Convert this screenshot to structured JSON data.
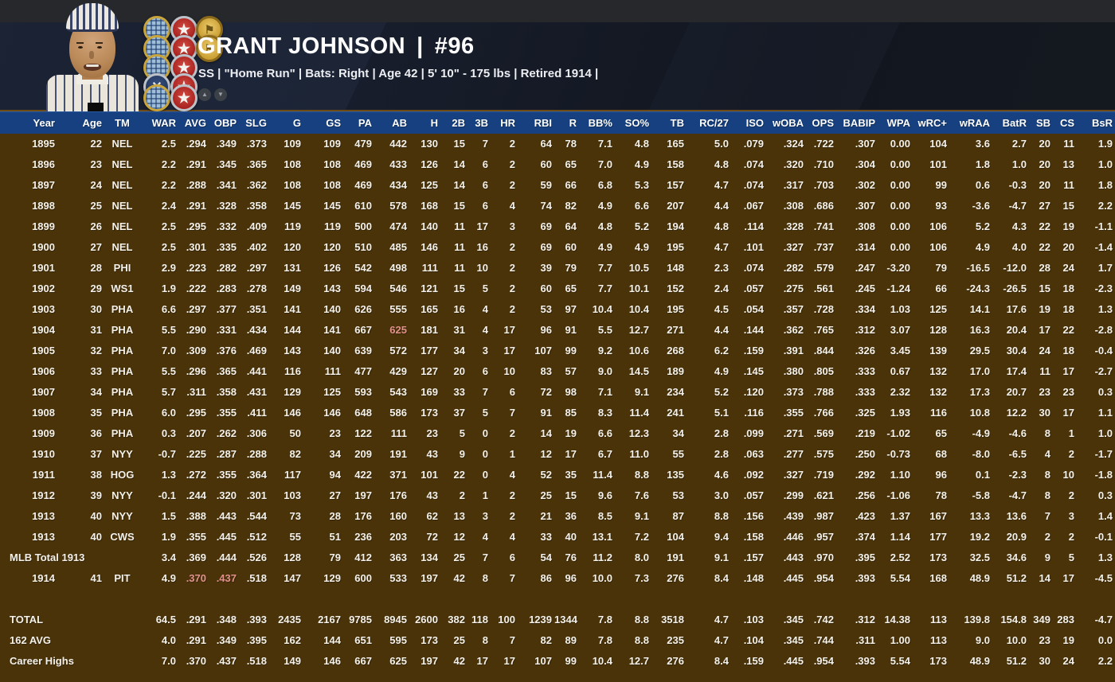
{
  "header": {
    "name": "GRANT JOHNSON",
    "name_number_separator": "|",
    "number": "#96",
    "subtitle": "SS | \"Home Run\" | Bats: Right  |  Age 42  |  5' 10\" - 175 lbs  |  Retired 1914  |",
    "scroll_up_glyph": "▲",
    "scroll_down_glyph": "▼",
    "badges": [
      {
        "row": 0,
        "col": 0,
        "type": "plaid",
        "icon": "plaid-medal-icon",
        "glyph": ""
      },
      {
        "row": 0,
        "col": 1,
        "type": "star",
        "icon": "star-medal-icon",
        "glyph": "★"
      },
      {
        "row": 0,
        "col": 2,
        "type": "gold",
        "icon": "gold-medal-icon",
        "glyph": "⚑"
      },
      {
        "row": 1,
        "col": 0,
        "type": "plaid",
        "icon": "plaid-medal-icon",
        "glyph": ""
      },
      {
        "row": 1,
        "col": 1,
        "type": "star",
        "icon": "star-medal-icon",
        "glyph": "★"
      },
      {
        "row": 1,
        "col": 2,
        "type": "gold",
        "icon": "gold-medal-icon",
        "glyph": "⚑"
      },
      {
        "row": 2,
        "col": 0,
        "type": "plaid",
        "icon": "plaid-medal-icon",
        "glyph": ""
      },
      {
        "row": 2,
        "col": 1,
        "type": "star",
        "icon": "star-medal-icon",
        "glyph": "★"
      },
      {
        "row": 3,
        "col": 0,
        "type": "bats",
        "icon": "crossed-bats-medal-icon",
        "glyph": "✕"
      },
      {
        "row": 3,
        "col": 1,
        "type": "star",
        "icon": "star-medal-icon",
        "glyph": "★"
      },
      {
        "row": 4,
        "col": 0,
        "type": "plaid",
        "icon": "plaid-medal-icon",
        "glyph": ""
      },
      {
        "row": 4,
        "col": 1,
        "type": "star",
        "icon": "star-medal-icon",
        "glyph": "★"
      }
    ]
  },
  "colors": {
    "table_background": "#4a3309",
    "header_row": "#16407f",
    "banner": "#14181f",
    "top_strip": "#26282c",
    "accent_line": "#6e4b15",
    "text": "#f3f1ea",
    "league_leader_highlight": "#e2908c"
  },
  "table": {
    "columns": [
      "Year",
      "Age",
      "TM",
      "WAR",
      "AVG",
      "OBP",
      "SLG",
      "G",
      "GS",
      "PA",
      "AB",
      "H",
      "2B",
      "3B",
      "HR",
      "RBI",
      "R",
      "BB%",
      "SO%",
      "TB",
      "RC/27",
      "ISO",
      "wOBA",
      "OPS",
      "BABIP",
      "WPA",
      "wRC+",
      "wRAA",
      "BatR",
      "SB",
      "CS",
      "BsR"
    ],
    "rows": [
      {
        "type": "year",
        "values": [
          "1895",
          "22",
          "NEL",
          "2.5",
          ".294",
          ".349",
          ".373",
          "109",
          "109",
          "479",
          "442",
          "130",
          "15",
          "7",
          "2",
          "64",
          "78",
          "7.1",
          "4.8",
          "165",
          "5.0",
          ".079",
          ".324",
          ".722",
          ".307",
          "0.00",
          "104",
          "3.6",
          "2.7",
          "20",
          "11",
          "1.9"
        ]
      },
      {
        "type": "year",
        "values": [
          "1896",
          "23",
          "NEL",
          "2.2",
          ".291",
          ".345",
          ".365",
          "108",
          "108",
          "469",
          "433",
          "126",
          "14",
          "6",
          "2",
          "60",
          "65",
          "7.0",
          "4.9",
          "158",
          "4.8",
          ".074",
          ".320",
          ".710",
          ".304",
          "0.00",
          "101",
          "1.8",
          "1.0",
          "20",
          "13",
          "1.0"
        ]
      },
      {
        "type": "year",
        "values": [
          "1897",
          "24",
          "NEL",
          "2.2",
          ".288",
          ".341",
          ".362",
          "108",
          "108",
          "469",
          "434",
          "125",
          "14",
          "6",
          "2",
          "59",
          "66",
          "6.8",
          "5.3",
          "157",
          "4.7",
          ".074",
          ".317",
          ".703",
          ".302",
          "0.00",
          "99",
          "0.6",
          "-0.3",
          "20",
          "11",
          "1.8"
        ]
      },
      {
        "type": "year",
        "values": [
          "1898",
          "25",
          "NEL",
          "2.4",
          ".291",
          ".328",
          ".358",
          "145",
          "145",
          "610",
          "578",
          "168",
          "15",
          "6",
          "4",
          "74",
          "82",
          "4.9",
          "6.6",
          "207",
          "4.4",
          ".067",
          ".308",
          ".686",
          ".307",
          "0.00",
          "93",
          "-3.6",
          "-4.7",
          "27",
          "15",
          "2.2"
        ]
      },
      {
        "type": "year",
        "values": [
          "1899",
          "26",
          "NEL",
          "2.5",
          ".295",
          ".332",
          ".409",
          "119",
          "119",
          "500",
          "474",
          "140",
          "11",
          "17",
          "3",
          "69",
          "64",
          "4.8",
          "5.2",
          "194",
          "4.8",
          ".114",
          ".328",
          ".741",
          ".308",
          "0.00",
          "106",
          "5.2",
          "4.3",
          "22",
          "19",
          "-1.1"
        ]
      },
      {
        "type": "year",
        "values": [
          "1900",
          "27",
          "NEL",
          "2.5",
          ".301",
          ".335",
          ".402",
          "120",
          "120",
          "510",
          "485",
          "146",
          "11",
          "16",
          "2",
          "69",
          "60",
          "4.9",
          "4.9",
          "195",
          "4.7",
          ".101",
          ".327",
          ".737",
          ".314",
          "0.00",
          "106",
          "4.9",
          "4.0",
          "22",
          "20",
          "-1.4"
        ]
      },
      {
        "type": "year",
        "values": [
          "1901",
          "28",
          "PHI",
          "2.9",
          ".223",
          ".282",
          ".297",
          "131",
          "126",
          "542",
          "498",
          "111",
          "11",
          "10",
          "2",
          "39",
          "79",
          "7.7",
          "10.5",
          "148",
          "2.3",
          ".074",
          ".282",
          ".579",
          ".247",
          "-3.20",
          "79",
          "-16.5",
          "-12.0",
          "28",
          "24",
          "1.7"
        ]
      },
      {
        "type": "year",
        "values": [
          "1902",
          "29",
          "WS1",
          "1.9",
          ".222",
          ".283",
          ".278",
          "149",
          "143",
          "594",
          "546",
          "121",
          "15",
          "5",
          "2",
          "60",
          "65",
          "7.7",
          "10.1",
          "152",
          "2.4",
          ".057",
          ".275",
          ".561",
          ".245",
          "-1.24",
          "66",
          "-24.3",
          "-26.5",
          "15",
          "18",
          "-2.3"
        ]
      },
      {
        "type": "year",
        "values": [
          "1903",
          "30",
          "PHA",
          "6.6",
          ".297",
          ".377",
          ".351",
          "141",
          "140",
          "626",
          "555",
          "165",
          "16",
          "4",
          "2",
          "53",
          "97",
          "10.4",
          "10.4",
          "195",
          "4.5",
          ".054",
          ".357",
          ".728",
          ".334",
          "1.03",
          "125",
          "14.1",
          "17.6",
          "19",
          "18",
          "1.3"
        ]
      },
      {
        "type": "year",
        "hl": [
          10
        ],
        "values": [
          "1904",
          "31",
          "PHA",
          "5.5",
          ".290",
          ".331",
          ".434",
          "144",
          "141",
          "667",
          "625",
          "181",
          "31",
          "4",
          "17",
          "96",
          "91",
          "5.5",
          "12.7",
          "271",
          "4.4",
          ".144",
          ".362",
          ".765",
          ".312",
          "3.07",
          "128",
          "16.3",
          "20.4",
          "17",
          "22",
          "-2.8"
        ]
      },
      {
        "type": "year",
        "values": [
          "1905",
          "32",
          "PHA",
          "7.0",
          ".309",
          ".376",
          ".469",
          "143",
          "140",
          "639",
          "572",
          "177",
          "34",
          "3",
          "17",
          "107",
          "99",
          "9.2",
          "10.6",
          "268",
          "6.2",
          ".159",
          ".391",
          ".844",
          ".326",
          "3.45",
          "139",
          "29.5",
          "30.4",
          "24",
          "18",
          "-0.4"
        ]
      },
      {
        "type": "year",
        "values": [
          "1906",
          "33",
          "PHA",
          "5.5",
          ".296",
          ".365",
          ".441",
          "116",
          "111",
          "477",
          "429",
          "127",
          "20",
          "6",
          "10",
          "83",
          "57",
          "9.0",
          "14.5",
          "189",
          "4.9",
          ".145",
          ".380",
          ".805",
          ".333",
          "0.67",
          "132",
          "17.0",
          "17.4",
          "11",
          "17",
          "-2.7"
        ]
      },
      {
        "type": "year",
        "values": [
          "1907",
          "34",
          "PHA",
          "5.7",
          ".311",
          ".358",
          ".431",
          "129",
          "125",
          "593",
          "543",
          "169",
          "33",
          "7",
          "6",
          "72",
          "98",
          "7.1",
          "9.1",
          "234",
          "5.2",
          ".120",
          ".373",
          ".788",
          ".333",
          "2.32",
          "132",
          "17.3",
          "20.7",
          "23",
          "23",
          "0.3"
        ]
      },
      {
        "type": "year",
        "values": [
          "1908",
          "35",
          "PHA",
          "6.0",
          ".295",
          ".355",
          ".411",
          "146",
          "146",
          "648",
          "586",
          "173",
          "37",
          "5",
          "7",
          "91",
          "85",
          "8.3",
          "11.4",
          "241",
          "5.1",
          ".116",
          ".355",
          ".766",
          ".325",
          "1.93",
          "116",
          "10.8",
          "12.2",
          "30",
          "17",
          "1.1"
        ]
      },
      {
        "type": "year",
        "values": [
          "1909",
          "36",
          "PHA",
          "0.3",
          ".207",
          ".262",
          ".306",
          "50",
          "23",
          "122",
          "111",
          "23",
          "5",
          "0",
          "2",
          "14",
          "19",
          "6.6",
          "12.3",
          "34",
          "2.8",
          ".099",
          ".271",
          ".569",
          ".219",
          "-1.02",
          "65",
          "-4.9",
          "-4.6",
          "8",
          "1",
          "1.0"
        ]
      },
      {
        "type": "year",
        "values": [
          "1910",
          "37",
          "NYY",
          "-0.7",
          ".225",
          ".287",
          ".288",
          "82",
          "34",
          "209",
          "191",
          "43",
          "9",
          "0",
          "1",
          "12",
          "17",
          "6.7",
          "11.0",
          "55",
          "2.8",
          ".063",
          ".277",
          ".575",
          ".250",
          "-0.73",
          "68",
          "-8.0",
          "-6.5",
          "4",
          "2",
          "-1.7"
        ]
      },
      {
        "type": "year",
        "values": [
          "1911",
          "38",
          "HOG",
          "1.3",
          ".272",
          ".355",
          ".364",
          "117",
          "94",
          "422",
          "371",
          "101",
          "22",
          "0",
          "4",
          "52",
          "35",
          "11.4",
          "8.8",
          "135",
          "4.6",
          ".092",
          ".327",
          ".719",
          ".292",
          "1.10",
          "96",
          "0.1",
          "-2.3",
          "8",
          "10",
          "-1.8"
        ]
      },
      {
        "type": "year",
        "values": [
          "1912",
          "39",
          "NYY",
          "-0.1",
          ".244",
          ".320",
          ".301",
          "103",
          "27",
          "197",
          "176",
          "43",
          "2",
          "1",
          "2",
          "25",
          "15",
          "9.6",
          "7.6",
          "53",
          "3.0",
          ".057",
          ".299",
          ".621",
          ".256",
          "-1.06",
          "78",
          "-5.8",
          "-4.7",
          "8",
          "2",
          "0.3"
        ]
      },
      {
        "type": "year",
        "values": [
          "1913",
          "40",
          "NYY",
          "1.5",
          ".388",
          ".443",
          ".544",
          "73",
          "28",
          "176",
          "160",
          "62",
          "13",
          "3",
          "2",
          "21",
          "36",
          "8.5",
          "9.1",
          "87",
          "8.8",
          ".156",
          ".439",
          ".987",
          ".423",
          "1.37",
          "167",
          "13.3",
          "13.6",
          "7",
          "3",
          "1.4"
        ]
      },
      {
        "type": "year",
        "values": [
          "1913",
          "40",
          "CWS",
          "1.9",
          ".355",
          ".445",
          ".512",
          "55",
          "51",
          "236",
          "203",
          "72",
          "12",
          "4",
          "4",
          "33",
          "40",
          "13.1",
          "7.2",
          "104",
          "9.4",
          ".158",
          ".446",
          ".957",
          ".374",
          "1.14",
          "177",
          "19.2",
          "20.9",
          "2",
          "2",
          "-0.1"
        ]
      },
      {
        "type": "summary",
        "values": [
          "MLB Total 1913",
          "",
          "",
          "3.4",
          ".369",
          ".444",
          ".526",
          "128",
          "79",
          "412",
          "363",
          "134",
          "25",
          "7",
          "6",
          "54",
          "76",
          "11.2",
          "8.0",
          "191",
          "9.1",
          ".157",
          ".443",
          ".970",
          ".395",
          "2.52",
          "173",
          "32.5",
          "34.6",
          "9",
          "5",
          "1.3"
        ]
      },
      {
        "type": "year",
        "hl": [
          4,
          5
        ],
        "values": [
          "1914",
          "41",
          "PIT",
          "4.9",
          ".370",
          ".437",
          ".518",
          "147",
          "129",
          "600",
          "533",
          "197",
          "42",
          "8",
          "7",
          "86",
          "96",
          "10.0",
          "7.3",
          "276",
          "8.4",
          ".148",
          ".445",
          ".954",
          ".393",
          "5.54",
          "168",
          "48.9",
          "51.2",
          "14",
          "17",
          "-4.5"
        ]
      },
      {
        "type": "spacer",
        "values": []
      },
      {
        "type": "summary",
        "values": [
          "TOTAL",
          "",
          "",
          "64.5",
          ".291",
          ".348",
          ".393",
          "2435",
          "2167",
          "9785",
          "8945",
          "2600",
          "382",
          "118",
          "100",
          "1239",
          "1344",
          "7.8",
          "8.8",
          "3518",
          "4.7",
          ".103",
          ".345",
          ".742",
          ".312",
          "14.38",
          "113",
          "139.8",
          "154.8",
          "349",
          "283",
          "-4.7"
        ]
      },
      {
        "type": "summary",
        "values": [
          "162 AVG",
          "",
          "",
          "4.0",
          ".291",
          ".349",
          ".395",
          "162",
          "144",
          "651",
          "595",
          "173",
          "25",
          "8",
          "7",
          "82",
          "89",
          "7.8",
          "8.8",
          "235",
          "4.7",
          ".104",
          ".345",
          ".744",
          ".311",
          "1.00",
          "113",
          "9.0",
          "10.0",
          "23",
          "19",
          "0.0"
        ]
      },
      {
        "type": "summary",
        "values": [
          "Career Highs",
          "",
          "",
          "7.0",
          ".370",
          ".437",
          ".518",
          "149",
          "146",
          "667",
          "625",
          "197",
          "42",
          "17",
          "17",
          "107",
          "99",
          "10.4",
          "12.7",
          "276",
          "8.4",
          ".159",
          ".445",
          ".954",
          ".393",
          "5.54",
          "173",
          "48.9",
          "51.2",
          "30",
          "24",
          "2.2"
        ]
      }
    ]
  }
}
